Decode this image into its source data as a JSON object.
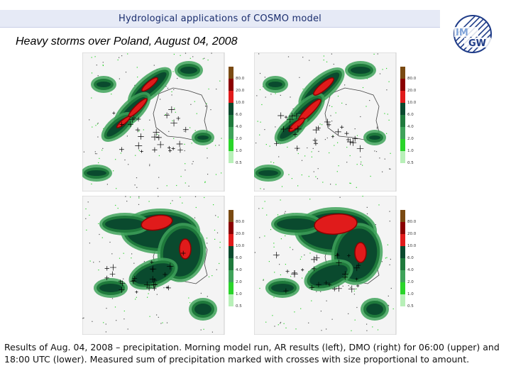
{
  "header": {
    "title": "Hydrological applications of COSMO model"
  },
  "logo": {
    "text_top": "IM",
    "text_bottom": "GW",
    "colors": {
      "primary": "#1f3c88",
      "light": "#7fa3d9"
    }
  },
  "subtitle": "Heavy storms over Poland, August 04, 2008",
  "legend": {
    "labels": [
      "80.0",
      "20.0",
      "10.0",
      "6.0",
      "4.0",
      "2.0",
      "1.0",
      "0.5"
    ],
    "colors": [
      "#7a4a12",
      "#8b0000",
      "#e01b1b",
      "#0a4a2e",
      "#1f7a3c",
      "#3fa35a",
      "#2ad42a",
      "#b8f0b8"
    ]
  },
  "panels": [
    {
      "id": "ar-0600",
      "model": "AR",
      "time": "06:00",
      "scale": 1.0
    },
    {
      "id": "dmo-0600",
      "model": "DMO",
      "time": "06:00",
      "scale": 1.0
    },
    {
      "id": "ar-1800",
      "model": "AR",
      "time": "18:00",
      "scale": 1.0
    },
    {
      "id": "dmo-1800",
      "model": "DMO",
      "time": "18:00",
      "scale": 1.0
    }
  ],
  "caption": "Results of Aug. 04, 2008 – precipitation. Morning model run, AR results (left), DMO (right)  for 06:00 (upper) and 18:00 UTC (lower). Measured sum of precipitation marked with crosses with size proportional to amount."
}
